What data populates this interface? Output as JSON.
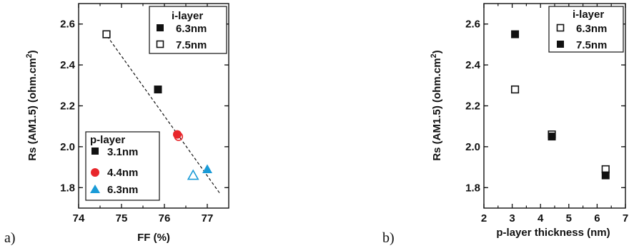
{
  "figure": {
    "colors": {
      "black": "#111111",
      "red": "#e8262b",
      "blue": "#1a9bd7"
    }
  },
  "chart_data": [
    {
      "type": "scatter",
      "panel_label": "a)",
      "xlabel": "FF (%)",
      "ylabel": "Rs (AM1.5) (ohm.cm",
      "ylabel_sup": "2",
      "ylabel_close": ")",
      "xlim": [
        74,
        77.5
      ],
      "ylim": [
        1.7,
        2.7
      ],
      "xticks": [
        "74",
        "75",
        "76",
        "77"
      ],
      "yticks": [
        "1.8",
        "2.0",
        "2.2",
        "2.4",
        "2.6"
      ],
      "legend_i": {
        "title": "i-layer",
        "entries": [
          "6.3nm",
          "7.5nm"
        ],
        "placement": "top-right"
      },
      "legend_p": {
        "title": "p-layer",
        "entries": [
          "3.1nm",
          "4.4nm",
          "6.3nm"
        ],
        "placement": "bottom-left"
      },
      "fit_line": {
        "style": "dashed",
        "x": [
          74.6,
          77.3
        ],
        "y": [
          2.56,
          1.77
        ]
      },
      "series": [
        {
          "p_layer": "3.1nm",
          "i_layer": "6.3nm",
          "marker": "square",
          "filled": true,
          "color": "black",
          "x": 75.85,
          "y": 2.28
        },
        {
          "p_layer": "3.1nm",
          "i_layer": "7.5nm",
          "marker": "square",
          "filled": false,
          "color": "black",
          "x": 74.65,
          "y": 2.55
        },
        {
          "p_layer": "4.4nm",
          "i_layer": "6.3nm",
          "marker": "circle",
          "filled": true,
          "color": "red",
          "x": 76.3,
          "y": 2.06
        },
        {
          "p_layer": "4.4nm",
          "i_layer": "7.5nm",
          "marker": "circle",
          "filled": false,
          "color": "red",
          "x": 76.33,
          "y": 2.05
        },
        {
          "p_layer": "6.3nm",
          "i_layer": "6.3nm",
          "marker": "triangle",
          "filled": true,
          "color": "blue",
          "x": 77.0,
          "y": 1.89
        },
        {
          "p_layer": "6.3nm",
          "i_layer": "7.5nm",
          "marker": "triangle",
          "filled": false,
          "color": "blue",
          "x": 76.67,
          "y": 1.86
        }
      ]
    },
    {
      "type": "scatter",
      "panel_label": "b)",
      "xlabel": "p-layer thickness (nm)",
      "ylabel": "Rs (AM1.5) (ohm.cm",
      "ylabel_sup": "2",
      "ylabel_close": ")",
      "xlim": [
        2,
        7
      ],
      "ylim": [
        1.7,
        2.7
      ],
      "xticks": [
        "2",
        "3",
        "4",
        "5",
        "6",
        "7"
      ],
      "yticks": [
        "1.8",
        "2.0",
        "2.2",
        "2.4",
        "2.6"
      ],
      "legend_i": {
        "title": "i-layer",
        "entries": [
          "6.3nm",
          "7.5nm"
        ],
        "placement": "top-right"
      },
      "series": [
        {
          "i_layer": "6.3nm",
          "marker": "square",
          "filled": false,
          "color": "black",
          "points": [
            {
              "x": 3.1,
              "y": 2.28
            },
            {
              "x": 4.4,
              "y": 2.06
            },
            {
              "x": 6.3,
              "y": 1.89
            }
          ]
        },
        {
          "i_layer": "7.5nm",
          "marker": "square",
          "filled": true,
          "color": "black",
          "points": [
            {
              "x": 3.1,
              "y": 2.55
            },
            {
              "x": 4.4,
              "y": 2.05
            },
            {
              "x": 6.3,
              "y": 1.86
            }
          ]
        }
      ]
    }
  ]
}
